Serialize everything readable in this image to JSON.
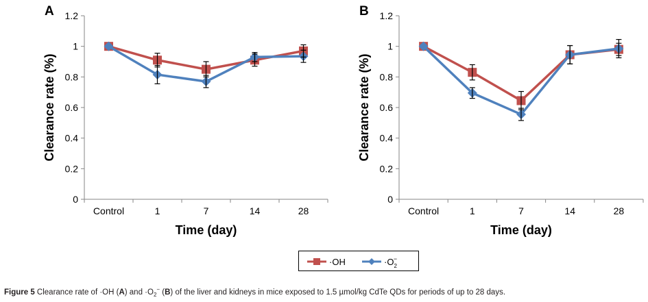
{
  "chart_data": [
    {
      "panel": "A",
      "type": "line",
      "categories": [
        "Control",
        "1",
        "7",
        "14",
        "28"
      ],
      "xlabel": "Time (day)",
      "ylabel": "Clearance rate (%)",
      "ylim": [
        0,
        1.2
      ],
      "yticks": [
        "0",
        "0.2",
        "0.4",
        "0.6",
        "0.8",
        "1",
        "1.2"
      ],
      "grid": false,
      "series": [
        {
          "name": "·OH",
          "color": "#c0504d",
          "marker": "square",
          "values": [
            1,
            0.91,
            0.85,
            0.91,
            0.97
          ],
          "errors": [
            0,
            0.045,
            0.05,
            0.04,
            0.04
          ]
        },
        {
          "name": "·O2−",
          "color": "#4f81bd",
          "marker": "diamond",
          "values": [
            1,
            0.815,
            0.77,
            0.93,
            0.935
          ],
          "errors": [
            0,
            0.06,
            0.04,
            0.03,
            0.04
          ]
        }
      ]
    },
    {
      "panel": "B",
      "type": "line",
      "categories": [
        "Control",
        "1",
        "7",
        "14",
        "28"
      ],
      "xlabel": "Time (day)",
      "ylabel": "Clearance rate (%)",
      "ylim": [
        0,
        1.2
      ],
      "yticks": [
        "0",
        "0.2",
        "0.4",
        "0.6",
        "0.8",
        "1",
        "1.2"
      ],
      "grid": false,
      "series": [
        {
          "name": "·OH",
          "color": "#c0504d",
          "marker": "square",
          "values": [
            1,
            0.83,
            0.645,
            0.945,
            0.98
          ],
          "errors": [
            0,
            0.05,
            0.06,
            0.06,
            0.04
          ]
        },
        {
          "name": "·O2−",
          "color": "#4f81bd",
          "marker": "diamond",
          "values": [
            1,
            0.695,
            0.555,
            0.945,
            0.985
          ],
          "errors": [
            0,
            0.035,
            0.04,
            0.06,
            0.06
          ]
        }
      ]
    }
  ],
  "legend": {
    "items": [
      "·OH",
      "·O",
      "2",
      "−"
    ],
    "position": "bottom"
  },
  "caption": {
    "label": "Figure 5",
    "text_1": " Clearance rate of ·OH (",
    "a": "A",
    "text_2": ") and ·O",
    "sub": "2",
    "sup": "−",
    "text_3": " (",
    "b": "B",
    "text_4": ") of the liver and kidneys in mice exposed to 1.5 µmol/kg CdTe QDs for periods of up to 28 days."
  }
}
